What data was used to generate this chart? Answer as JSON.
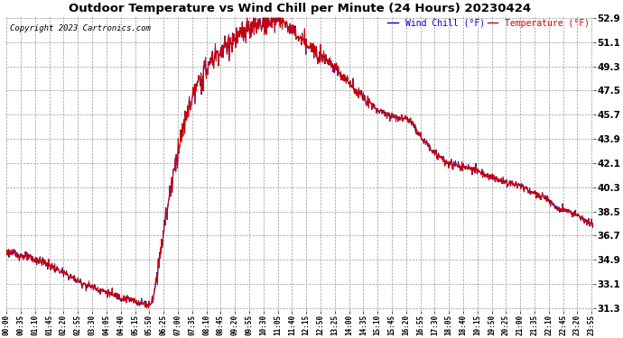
{
  "title": "Outdoor Temperature vs Wind Chill per Minute (24 Hours) 20230424",
  "copyright": "Copyright 2023 Cartronics.com",
  "legend_wind_chill": "Wind Chill (°F)",
  "legend_temperature": "Temperature (°F)",
  "wind_chill_color": "#0000cc",
  "temperature_color": "#cc0000",
  "background_color": "#ffffff",
  "grid_color": "#999999",
  "title_fontsize": 9.5,
  "ytick_labels": [
    31.3,
    33.1,
    34.9,
    36.7,
    38.5,
    40.3,
    42.1,
    43.9,
    45.7,
    47.5,
    49.3,
    51.1,
    52.9
  ],
  "ymin": 31.3,
  "ymax": 52.9,
  "total_minutes": 1440,
  "xtick_interval": 35
}
